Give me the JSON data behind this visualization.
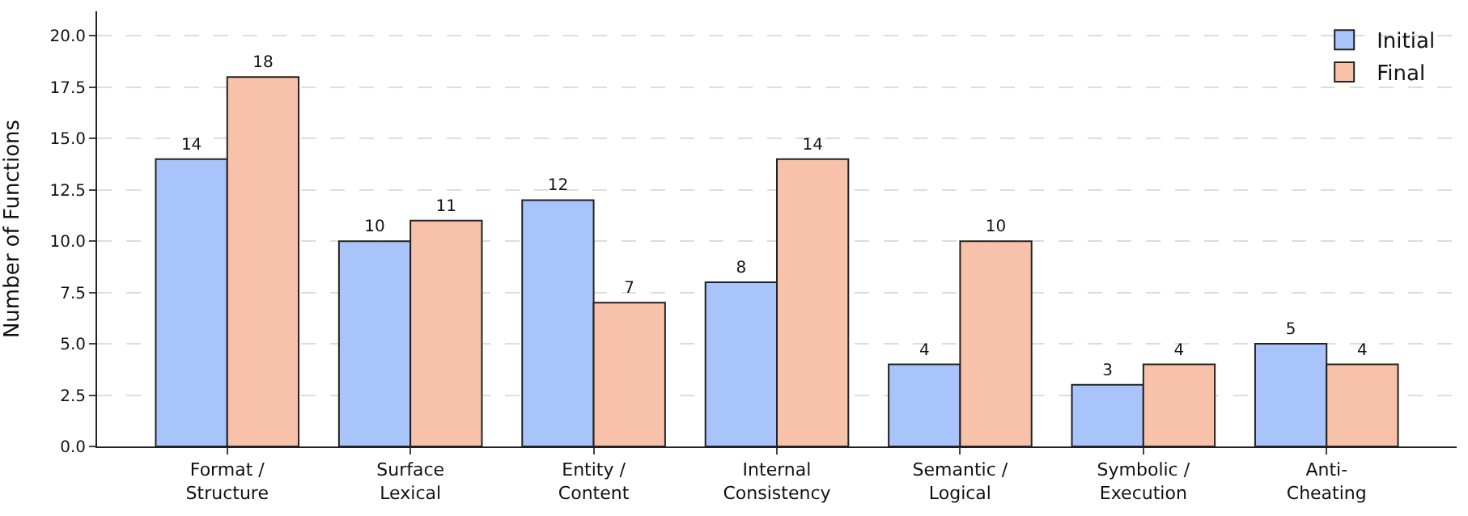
{
  "chart_data": {
    "type": "bar",
    "ylabel": "Number of Functions",
    "categories": [
      "Format /\nStructure",
      "Surface\nLexical",
      "Entity /\nContent",
      "Internal\nConsistency",
      "Semantic /\nLogical",
      "Symbolic /\nExecution",
      "Anti-\nCheating"
    ],
    "series": [
      {
        "name": "Initial",
        "color": "#a8c4fb",
        "values": [
          14,
          10,
          12,
          8,
          4,
          3,
          5
        ]
      },
      {
        "name": "Final",
        "color": "#f7c2a9",
        "values": [
          18,
          11,
          7,
          14,
          10,
          4,
          4
        ]
      }
    ],
    "ylim": [
      0,
      21.2
    ],
    "yticks": [
      {
        "value": 0,
        "label": "0.0"
      },
      2.5,
      {
        "value": 5,
        "label": "5.0"
      },
      7.5,
      {
        "value": 10,
        "label": "10.0"
      },
      12.5,
      {
        "value": 15,
        "label": "15.0"
      },
      17.5,
      {
        "value": 20,
        "label": "20.0"
      }
    ],
    "grid": "y",
    "legend": "top right",
    "data_labels": true
  }
}
